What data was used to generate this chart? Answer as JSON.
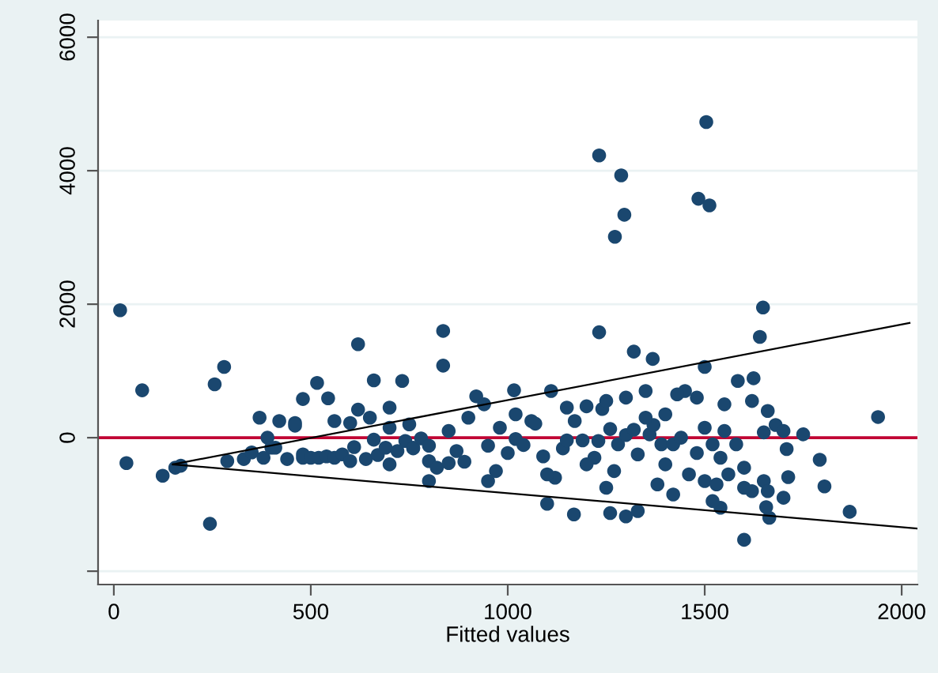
{
  "chart_data": {
    "type": "scatter",
    "xlabel": "Fitted values",
    "xlim": [
      -40,
      2040
    ],
    "ylim": [
      -2200,
      6250
    ],
    "xticks": [
      0,
      500,
      1000,
      1500,
      2000
    ],
    "yticks": [
      {
        "value": -2000,
        "label": null
      },
      0,
      2000,
      4000,
      6000
    ],
    "grid": "y",
    "ref_lines": [
      {
        "axis": "y",
        "value": 0,
        "color": "#c10534"
      }
    ],
    "series": [
      {
        "marker": "circle",
        "color": "#1a476f",
        "x": [
          16,
          72,
          32,
          124,
          156,
          244,
          256,
          280,
          288,
          170,
          330,
          350,
          370,
          380,
          390,
          400,
          410,
          420,
          440,
          460,
          480,
          480,
          500,
          520,
          540,
          560,
          580,
          600,
          610,
          620,
          620,
          640,
          660,
          670,
          690,
          700,
          720,
          740,
          760,
          760,
          780,
          800,
          800,
          820,
          850,
          870,
          890,
          920,
          940,
          950,
          970,
          980,
          1000,
          1020,
          1040,
          1060,
          1070,
          1090,
          1110,
          1120,
          1140,
          1150,
          1170,
          1190,
          1220,
          1230,
          1240,
          1260,
          1270,
          1280,
          1300,
          1320,
          1330,
          1360,
          1370,
          1390,
          1400,
          1420,
          1440,
          1460,
          1480,
          1500,
          1520,
          1540,
          1560,
          1580,
          1600,
          1620,
          1232,
          1288,
          1296,
          1272,
          1484,
          1504,
          1512,
          1232,
          1320,
          1368,
          1640,
          1648,
          1500,
          1584,
          1624,
          1940,
          1792,
          1804,
          1868,
          1600,
          1664,
          1656,
          1708,
          1712,
          1680,
          1168,
          1260,
          1300,
          1100,
          1330,
          1016,
          836,
          836,
          732,
          660,
          516,
          544,
          480,
          1020,
          1200,
          1300,
          1350,
          1450,
          1550,
          1620,
          1660,
          1700,
          1750,
          1430,
          1480,
          1400,
          1350,
          1250,
          1150,
          900,
          850,
          750,
          700,
          650,
          560,
          460,
          1380,
          1420,
          1530,
          1600,
          1540,
          1250,
          1200,
          1100,
          950,
          800,
          700,
          600,
          1650,
          1700,
          1520,
          1660,
          1500,
          1650,
          1550
        ],
        "values": [
          1910,
          710,
          -380,
          -570,
          -450,
          -1290,
          800,
          1060,
          -350,
          -420,
          -320,
          -220,
          300,
          -300,
          0,
          -150,
          -150,
          250,
          -320,
          220,
          -300,
          -250,
          -300,
          -300,
          -280,
          -300,
          -250,
          220,
          -140,
          1400,
          420,
          -320,
          -30,
          -260,
          -150,
          150,
          -200,
          -50,
          -150,
          -160,
          -10,
          -120,
          -350,
          -450,
          -380,
          -200,
          -360,
          620,
          500,
          -120,
          -500,
          150,
          -230,
          -20,
          -110,
          250,
          210,
          -280,
          700,
          -600,
          -160,
          -40,
          250,
          -40,
          -300,
          -50,
          430,
          130,
          -500,
          -100,
          40,
          120,
          -250,
          50,
          190,
          -100,
          -400,
          -100,
          0,
          -550,
          -230,
          -650,
          -100,
          -300,
          -550,
          -100,
          -450,
          -800,
          4230,
          3930,
          3340,
          3010,
          3580,
          4730,
          3480,
          1580,
          1290,
          1180,
          1510,
          1950,
          1060,
          850,
          890,
          310,
          -330,
          -730,
          -1110,
          -1530,
          -1200,
          -1040,
          -170,
          -590,
          190,
          -1150,
          -1130,
          -1180,
          -990,
          -1100,
          710,
          1600,
          1080,
          850,
          860,
          820,
          590,
          580,
          350,
          470,
          600,
          700,
          700,
          500,
          550,
          400,
          100,
          50,
          650,
          600,
          350,
          300,
          550,
          450,
          300,
          100,
          200,
          450,
          300,
          250,
          180,
          -700,
          -850,
          -700,
          -750,
          -1050,
          -750,
          -400,
          -550,
          -650,
          -650,
          -400,
          -350,
          -650,
          -900,
          -950,
          -800,
          150,
          80,
          100
        ]
      },
      {
        "type": "line",
        "marker": "none",
        "color": "#000000",
        "x": [
          150,
          2020
        ],
        "values": [
          -400,
          1720
        ]
      },
      {
        "type": "line",
        "marker": "none",
        "color": "#000000",
        "x": [
          150,
          2040
        ],
        "values": [
          -400,
          -1360
        ]
      }
    ]
  }
}
